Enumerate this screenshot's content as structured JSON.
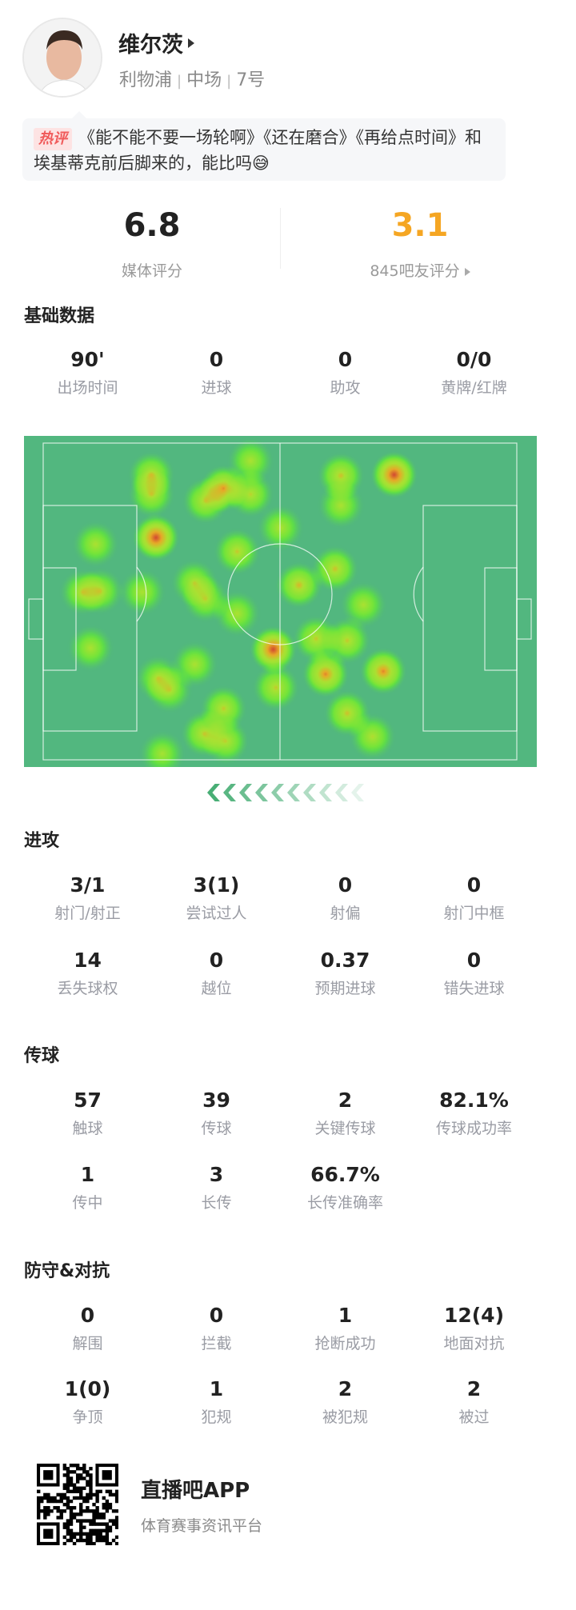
{
  "player": {
    "name": "维尔茨",
    "team": "利物浦",
    "position": "中场",
    "number": "7号"
  },
  "comment": {
    "badge": "热评",
    "text": "《能不能不要一场轮啊》《还在磨合》《再给点时间》和埃基蒂克前后脚来的，能比吗😅"
  },
  "ratings": {
    "media": {
      "value": "6.8",
      "label": "媒体评分"
    },
    "fans": {
      "value": "3.1",
      "label": "845吧友评分",
      "color": "#f5a623"
    }
  },
  "basic": {
    "title": "基础数据",
    "stats": [
      {
        "value": "90'",
        "label": "出场时间"
      },
      {
        "value": "0",
        "label": "进球"
      },
      {
        "value": "0",
        "label": "助攻"
      },
      {
        "value": "0/0",
        "label": "黄牌/红牌"
      }
    ]
  },
  "heatmap": {
    "pitch_color": "#52b77f",
    "pitch_size_m": [
      105,
      68
    ],
    "points_m": [
      [
        24,
        6.8,
        0.5
      ],
      [
        24,
        11,
        0.45
      ],
      [
        40,
        9.7,
        0.75
      ],
      [
        36,
        12.4,
        0.5
      ],
      [
        46,
        11,
        0.45
      ],
      [
        46,
        3.8,
        0.35
      ],
      [
        25,
        20.3,
        1.0
      ],
      [
        11.6,
        21.7,
        0.35
      ],
      [
        8.8,
        32,
        0.4
      ],
      [
        12.6,
        31.8,
        0.4
      ],
      [
        22,
        32,
        0.35
      ],
      [
        43,
        23.3,
        0.5
      ],
      [
        33.5,
        30,
        0.4
      ],
      [
        36,
        33.5,
        0.4
      ],
      [
        43,
        36.6,
        0.35
      ],
      [
        52.6,
        18.2,
        0.35
      ],
      [
        66,
        7,
        0.55
      ],
      [
        66,
        13.4,
        0.35
      ],
      [
        77.8,
        6.8,
        1.0
      ],
      [
        64.7,
        27,
        0.55
      ],
      [
        56.7,
        30.5,
        0.6
      ],
      [
        71,
        34.7,
        0.35
      ],
      [
        51,
        44.3,
        1.0
      ],
      [
        60.5,
        42,
        0.5
      ],
      [
        67.4,
        42.4,
        0.5
      ],
      [
        62.6,
        49.6,
        0.8
      ],
      [
        75.4,
        49,
        0.8
      ],
      [
        51.6,
        52.5,
        0.5
      ],
      [
        10.5,
        44,
        0.35
      ],
      [
        33.6,
        47.5,
        0.35
      ],
      [
        25.5,
        50.5,
        0.35
      ],
      [
        28,
        53,
        0.35
      ],
      [
        40,
        57,
        0.5
      ],
      [
        35.7,
        62.4,
        0.5
      ],
      [
        40.5,
        64,
        0.45
      ],
      [
        67.4,
        58,
        0.55
      ],
      [
        73,
        63,
        0.4
      ],
      [
        26.4,
        66.7,
        0.3
      ]
    ],
    "direction": "left"
  },
  "attack": {
    "title": "进攻",
    "rows": [
      [
        {
          "value": "3/1",
          "label": "射门/射正"
        },
        {
          "value": "3(1)",
          "label": "尝试过人"
        },
        {
          "value": "0",
          "label": "射偏"
        },
        {
          "value": "0",
          "label": "射门中框"
        }
      ],
      [
        {
          "value": "14",
          "label": "丢失球权"
        },
        {
          "value": "0",
          "label": "越位"
        },
        {
          "value": "0.37",
          "label": "预期进球"
        },
        {
          "value": "0",
          "label": "错失进球"
        }
      ]
    ]
  },
  "passing": {
    "title": "传球",
    "rows": [
      [
        {
          "value": "57",
          "label": "触球"
        },
        {
          "value": "39",
          "label": "传球"
        },
        {
          "value": "2",
          "label": "关键传球"
        },
        {
          "value": "82.1%",
          "label": "传球成功率"
        }
      ],
      [
        {
          "value": "1",
          "label": "传中"
        },
        {
          "value": "3",
          "label": "长传"
        },
        {
          "value": "66.7%",
          "label": "长传准确率"
        }
      ]
    ]
  },
  "defense": {
    "title": "防守&对抗",
    "rows": [
      [
        {
          "value": "0",
          "label": "解围"
        },
        {
          "value": "0",
          "label": "拦截"
        },
        {
          "value": "1",
          "label": "抢断成功"
        },
        {
          "value": "12(4)",
          "label": "地面对抗"
        }
      ],
      [
        {
          "value": "1(0)",
          "label": "争顶"
        },
        {
          "value": "1",
          "label": "犯规"
        },
        {
          "value": "2",
          "label": "被犯规"
        },
        {
          "value": "2",
          "label": "被过"
        }
      ]
    ]
  },
  "footer": {
    "app": "直播吧APP",
    "slogan": "体育赛事资讯平台"
  }
}
